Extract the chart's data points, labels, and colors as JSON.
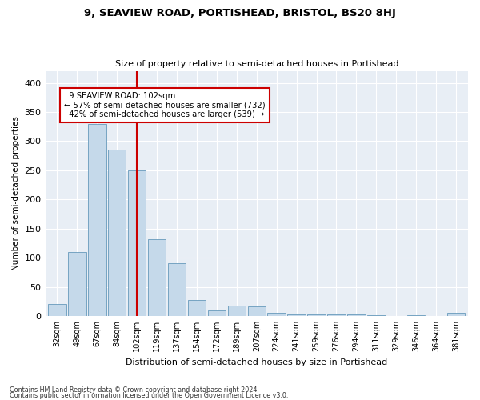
{
  "title": "9, SEAVIEW ROAD, PORTISHEAD, BRISTOL, BS20 8HJ",
  "subtitle": "Size of property relative to semi-detached houses in Portishead",
  "xlabel": "Distribution of semi-detached houses by size in Portishead",
  "ylabel": "Number of semi-detached properties",
  "footnote1": "Contains HM Land Registry data © Crown copyright and database right 2024.",
  "footnote2": "Contains public sector information licensed under the Open Government Licence v3.0.",
  "bar_labels": [
    "32sqm",
    "49sqm",
    "67sqm",
    "84sqm",
    "102sqm",
    "119sqm",
    "137sqm",
    "154sqm",
    "172sqm",
    "189sqm",
    "207sqm",
    "224sqm",
    "241sqm",
    "259sqm",
    "276sqm",
    "294sqm",
    "311sqm",
    "329sqm",
    "346sqm",
    "364sqm",
    "381sqm"
  ],
  "bar_values": [
    20,
    110,
    330,
    285,
    250,
    132,
    90,
    27,
    10,
    18,
    17,
    6,
    3,
    3,
    3,
    3,
    1,
    0,
    1,
    0,
    5
  ],
  "bar_color": "#c5d9ea",
  "bar_edge_color": "#6699bb",
  "property_label": "9 SEAVIEW ROAD: 102sqm",
  "pct_smaller": 57,
  "n_smaller": 732,
  "pct_larger": 42,
  "n_larger": 539,
  "vline_color": "#cc0000",
  "vline_x_index": 4,
  "annotation_box_color": "#cc0000",
  "background_color": "#e8eef5",
  "ylim": [
    0,
    420
  ],
  "yticks": [
    0,
    50,
    100,
    150,
    200,
    250,
    300,
    350,
    400
  ]
}
